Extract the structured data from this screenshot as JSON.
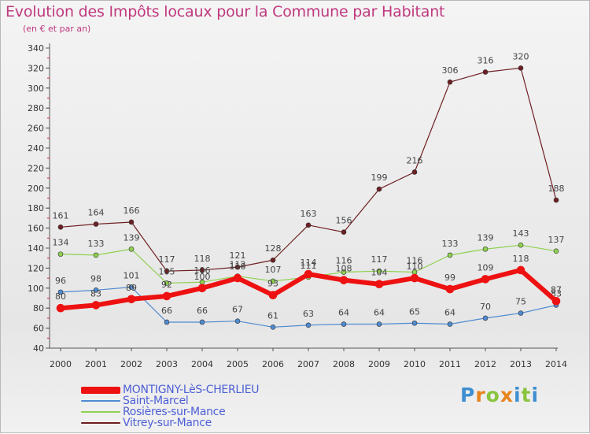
{
  "header": {
    "title": "Evolution des Impôts locaux pour la Commune par Habitant",
    "subtitle": "(en € et par an)"
  },
  "logo": {
    "text": "Proxiti",
    "colors": [
      "#3f8fd1",
      "#e8841c",
      "#8ac43f",
      "#e8841c",
      "#3f8fd1",
      "#8ac43f",
      "#3f8fd1"
    ]
  },
  "chart_data": {
    "type": "line",
    "categories": [
      "2000",
      "2001",
      "2002",
      "2003",
      "2004",
      "2005",
      "2006",
      "2007",
      "2008",
      "2009",
      "2010",
      "2011",
      "2012",
      "2013",
      "2014"
    ],
    "ylim": [
      40,
      340
    ],
    "yticks": [
      40,
      60,
      80,
      100,
      120,
      140,
      160,
      180,
      200,
      220,
      240,
      260,
      280,
      300,
      320,
      340
    ],
    "grid": false,
    "legend_position": "bottom-left",
    "series": [
      {
        "name": "Vitrey-sur-Mance",
        "color": "#6e1f22",
        "line_width": 1.2,
        "values": [
          161,
          164,
          166,
          117,
          118,
          121,
          128,
          163,
          156,
          199,
          216,
          306,
          316,
          320,
          188
        ]
      },
      {
        "name": "Rosières-sur-Mance",
        "color": "#8fd14f",
        "line_width": 1.2,
        "values": [
          134,
          133,
          139,
          105,
          106,
          112,
          107,
          111,
          116,
          117,
          116,
          133,
          139,
          143,
          137
        ]
      },
      {
        "name": "Saint-Marcel",
        "color": "#4f8bd1",
        "line_width": 1.2,
        "values": [
          96,
          98,
          101,
          66,
          66,
          67,
          61,
          63,
          64,
          64,
          65,
          64,
          70,
          75,
          83
        ]
      },
      {
        "name": "MONTIGNY-LèS-CHERLIEU",
        "color": "#ee1111",
        "line_width": 6,
        "values": [
          80,
          83,
          89,
          92,
          100,
          110,
          93,
          114,
          108,
          104,
          110,
          99,
          109,
          118,
          87
        ]
      }
    ]
  }
}
